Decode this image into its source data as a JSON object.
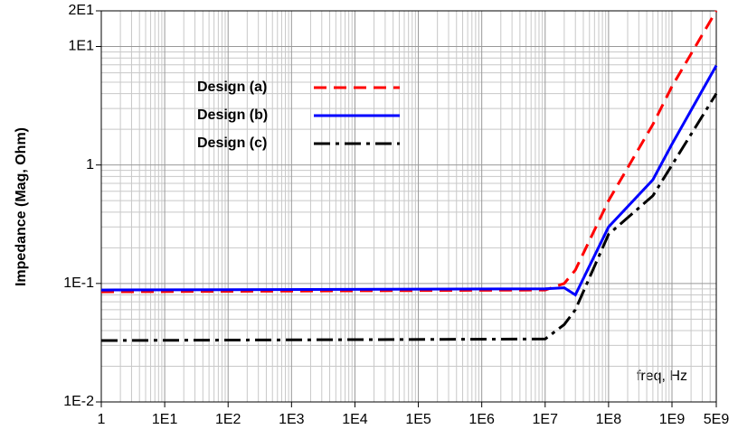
{
  "chart_data": {
    "type": "line",
    "y_label": "Impedance (Mag, Ohm)",
    "x_label": "freq, Hz",
    "xscale": "log",
    "yscale": "log",
    "grid": true,
    "minor_grid": true,
    "legend": "upper-left",
    "x": [
      1,
      10000000,
      20000000,
      30000000,
      100000000,
      500000000,
      1000000000,
      5000000000
    ],
    "series": [
      {
        "name": "Design (a)",
        "color": "#ff0000",
        "dash": "dashed",
        "values": [
          0.085,
          0.088,
          0.1,
          0.13,
          0.5,
          2.2,
          4.6,
          20
        ]
      },
      {
        "name": "Design (b)",
        "color": "#0000ff",
        "dash": "solid",
        "values": [
          0.088,
          0.09,
          0.092,
          0.08,
          0.3,
          0.75,
          1.5,
          6.9
        ]
      },
      {
        "name": "Design (c)",
        "color": "#000000",
        "dash": "dashdot",
        "values": [
          0.033,
          0.034,
          0.045,
          0.06,
          0.26,
          0.55,
          1.0,
          4.0
        ]
      }
    ],
    "xlim": [
      1,
      5000000000
    ],
    "ylim": [
      0.01,
      20
    ],
    "xticks": [
      1,
      {
        "value": 10,
        "label": "1E1"
      },
      {
        "value": 100,
        "label": "1E2"
      },
      {
        "value": 1000,
        "label": "1E3"
      },
      {
        "value": 10000,
        "label": "1E4"
      },
      {
        "value": 100000,
        "label": "1E5"
      },
      {
        "value": 1000000,
        "label": "1E6"
      },
      {
        "value": 10000000,
        "label": "1E7"
      },
      {
        "value": 100000000,
        "label": "1E8"
      },
      {
        "value": 1000000000,
        "label": "1E9"
      },
      {
        "value": 5000000000,
        "label": "5E9"
      }
    ],
    "yticks": [
      {
        "value": 0.01,
        "label": "1E-2"
      },
      {
        "value": 0.1,
        "label": "1E-1"
      },
      1,
      {
        "value": 10,
        "label": "1E1"
      },
      {
        "value": 20,
        "label": "2E1"
      }
    ]
  }
}
